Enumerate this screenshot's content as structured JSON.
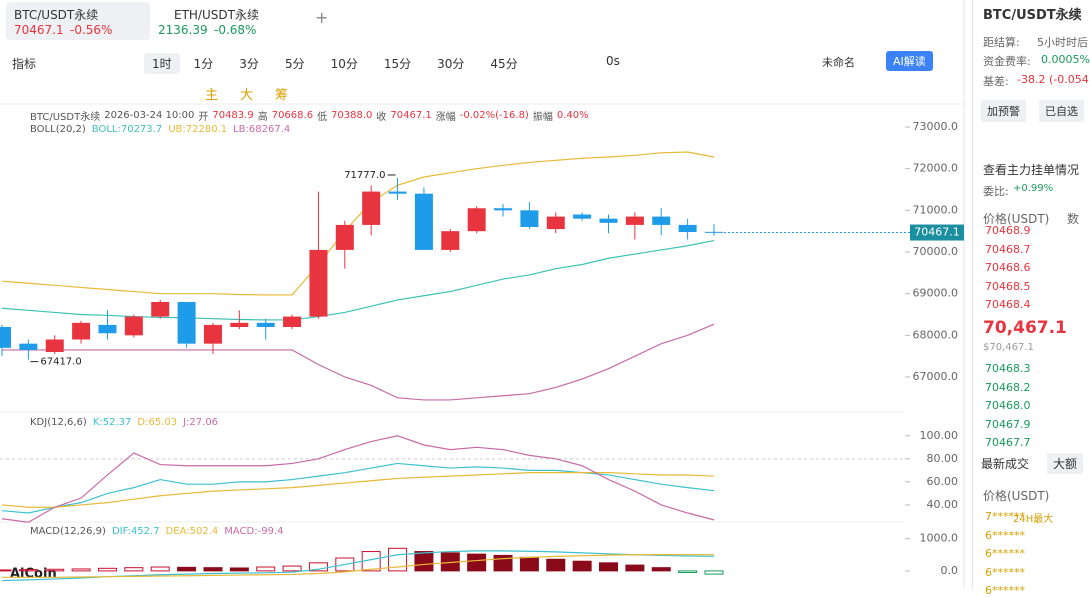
{
  "tabs": [
    {
      "symbol": "BTC/USDT永续",
      "price": "70467.1",
      "change": "-0.56%"
    },
    {
      "symbol": "ETH/USDT永续",
      "price": "2136.39",
      "change": "-0.68%"
    }
  ],
  "add_tab": "+",
  "toolbar": {
    "indicator": "指标",
    "interval": "1时",
    "intervals": [
      "1分",
      "3分",
      "5分",
      "10分",
      "15分",
      "30分",
      "45分"
    ],
    "countdown": "0s",
    "layout_name": "未命名",
    "ai_button": "AI解读",
    "tools": [
      "主",
      "大",
      "筹"
    ]
  },
  "chart": {
    "info": {
      "symbol": "BTC/USDT永续",
      "time": "2026-03-24 10:00",
      "open_label": "开",
      "open": "70483.9",
      "high_label": "高",
      "high": "70668.6",
      "low_label": "低",
      "low": "70388.0",
      "close_label": "收",
      "close": "70467.1",
      "change_label": "涨幅",
      "change": "-0.02%(-16.8)",
      "amp_label": "振幅",
      "amp": "0.40%"
    },
    "ylim": [
      66400,
      73600
    ],
    "yticks": [
      {
        "value": 73000,
        "label": "73000.0"
      },
      {
        "value": 72000,
        "label": "72000.0"
      },
      {
        "value": 71000,
        "label": "71000.0"
      },
      {
        "value": 70000,
        "label": "70000.0"
      },
      {
        "value": 69000,
        "label": "69000.0"
      },
      {
        "value": 68000,
        "label": "68000.0"
      },
      {
        "value": 67000,
        "label": "67000.0"
      }
    ],
    "colors": {
      "up": "#e8343f",
      "down": "#1e9be9"
    },
    "candles": {
      "open": [
        68200,
        67800,
        67600,
        67900,
        68250,
        68000,
        68450,
        68800,
        67800,
        68200,
        68300,
        68200,
        68450,
        70050,
        70650,
        71450,
        71400,
        70050,
        70500,
        71050,
        71000,
        70550,
        70900,
        70800,
        70650,
        70850,
        70650,
        70483.9
      ],
      "high": [
        68250,
        67900,
        68000,
        68350,
        68600,
        68500,
        68850,
        68800,
        68300,
        68600,
        68400,
        68500,
        71450,
        70750,
        71600,
        71777,
        71550,
        70550,
        71100,
        71150,
        71200,
        70950,
        70950,
        70900,
        70950,
        71050,
        70800,
        70668.6
      ],
      "low": [
        67500,
        67417,
        67550,
        67800,
        67900,
        67950,
        68400,
        67700,
        67550,
        68150,
        67900,
        68150,
        68400,
        69600,
        70400,
        71250,
        70050,
        70000,
        70450,
        70850,
        70550,
        70450,
        70750,
        70450,
        70300,
        70400,
        70300,
        70388.0
      ],
      "close": [
        67700,
        67650,
        67900,
        68300,
        68050,
        68450,
        68800,
        67800,
        68250,
        68300,
        68200,
        68450,
        70050,
        70650,
        71450,
        71400,
        70050,
        70500,
        71050,
        71000,
        70600,
        70850,
        70800,
        70700,
        70850,
        70650,
        70480,
        70467.1
      ]
    },
    "high_marker": "71777.0",
    "low_marker": "67417.0",
    "last_price_label": "70467.1",
    "boll": {
      "label": "BOLL(20,2)",
      "mid_label": "BOLL:70273.7",
      "upper_label": "UB:72280.1",
      "lower_label": "LB:68267.4",
      "colors": {
        "mid": "#3cc0b4",
        "upper": "#e8b936",
        "lower": "#c86aa8"
      },
      "upper": [
        69300,
        69250,
        69200,
        69150,
        69100,
        69050,
        69000,
        69000,
        69000,
        68980,
        68970,
        68970,
        69700,
        70500,
        71200,
        71600,
        71800,
        71900,
        72000,
        72080,
        72150,
        72200,
        72250,
        72280,
        72320,
        72380,
        72400,
        72280.1
      ],
      "mid": [
        68650,
        68600,
        68550,
        68500,
        68480,
        68450,
        68430,
        68420,
        68400,
        68380,
        68370,
        68370,
        68450,
        68550,
        68700,
        68850,
        68950,
        69050,
        69200,
        69350,
        69450,
        69600,
        69700,
        69850,
        69950,
        70050,
        70150,
        70273.7
      ],
      "lower": [
        67650,
        67650,
        67650,
        67650,
        67650,
        67650,
        67650,
        67650,
        67650,
        67650,
        67650,
        67650,
        67300,
        67000,
        66800,
        66500,
        66450,
        66450,
        66500,
        66550,
        66600,
        66750,
        66950,
        67200,
        67500,
        67800,
        68000,
        68267.4
      ]
    },
    "kdj": {
      "label": "KDJ(12,6,6)",
      "k_label": "K:52.37",
      "d_label": "D:65.03",
      "j_label": "J:27.06",
      "ylim": [
        20,
        105
      ],
      "yticks": [
        {
          "value": 100,
          "label": "100.00"
        },
        {
          "value": 80,
          "label": "80.00"
        },
        {
          "value": 60,
          "label": "60.00"
        },
        {
          "value": 40,
          "label": "40.00"
        }
      ],
      "colors": {
        "k": "#3cc0d0",
        "d": "#e8b936",
        "j": "#c86aa8"
      },
      "k": [
        35,
        33,
        38,
        42,
        50,
        55,
        62,
        58,
        58,
        60,
        60,
        62,
        65,
        68,
        72,
        76,
        74,
        72,
        73,
        72,
        70,
        70,
        68,
        66,
        62,
        58,
        55,
        52.37
      ],
      "d": [
        40,
        38,
        38,
        40,
        42,
        45,
        48,
        50,
        52,
        53,
        54,
        55,
        57,
        59,
        61,
        63,
        64,
        65,
        66,
        67,
        68,
        68,
        68,
        68,
        67,
        66,
        66,
        65.03
      ],
      "j": [
        28,
        25,
        38,
        46,
        66,
        85,
        75,
        74,
        74,
        74,
        74,
        76,
        80,
        88,
        95,
        100,
        92,
        88,
        90,
        88,
        83,
        80,
        74,
        62,
        52,
        40,
        33,
        27.06
      ]
    },
    "macd": {
      "label": "MACD(12,26,9)",
      "dif_label": "DIF:452.7",
      "dea_label": "DEA:502.4",
      "macd_label": "MACD:-99.4",
      "ylim": [
        -500,
        1300
      ],
      "yticks": [
        {
          "value": 1000,
          "label": "1000.0"
        },
        {
          "value": 0,
          "label": "0.0"
        }
      ],
      "colors": {
        "dif": "#3cc0d0",
        "dea": "#e8b936",
        "up": "#c8102e",
        "down": "#8b0a1a",
        "neg": "#1a9a5a"
      },
      "hist": [
        30,
        40,
        50,
        60,
        80,
        100,
        120,
        110,
        100,
        90,
        120,
        150,
        250,
        400,
        600,
        700,
        600,
        560,
        520,
        480,
        420,
        360,
        300,
        250,
        180,
        100,
        -50,
        -99.4
      ],
      "dif": [
        -300,
        -280,
        -250,
        -220,
        -180,
        -150,
        -120,
        -100,
        -80,
        -70,
        -60,
        -40,
        50,
        200,
        350,
        500,
        560,
        600,
        620,
        620,
        610,
        590,
        560,
        530,
        500,
        480,
        460,
        452.7
      ],
      "dea": [
        -200,
        -200,
        -200,
        -190,
        -180,
        -170,
        -160,
        -150,
        -140,
        -130,
        -120,
        -110,
        -80,
        -30,
        50,
        120,
        200,
        260,
        320,
        380,
        420,
        450,
        470,
        490,
        500,
        505,
        505,
        502.4
      ]
    }
  },
  "logo": "AiCoin",
  "side": {
    "symbol": "BTC/USDT永续",
    "settle_label": "距结算:",
    "settle_value": "5小时时后",
    "funding_label": "资金费率:",
    "funding_value": "0.0005%",
    "basis_label": "基差:",
    "basis_value": "-38.2 (-0.054",
    "buttons": [
      "加预警",
      "已自选"
    ],
    "depth_link": "查看主力挂单情况",
    "ratio_label": "委比:",
    "ratio_value": "+0.99%",
    "book_headers": [
      "价格(USDT)",
      "数"
    ],
    "asks": [
      "70468.9",
      "70468.7",
      "70468.6",
      "70468.5",
      "70468.4"
    ],
    "last": "70,467.1",
    "last_usd": "$70,467.1",
    "bids": [
      "70468.3",
      "70468.2",
      "70468.0",
      "70467.9",
      "70467.7"
    ],
    "trades_tabs": [
      "最新成交",
      "大额"
    ],
    "trades_header": "价格(USDT)",
    "trades": [
      "7******",
      "6******",
      "6******",
      "6******",
      "6******"
    ],
    "trades_badge": "24H最大"
  }
}
